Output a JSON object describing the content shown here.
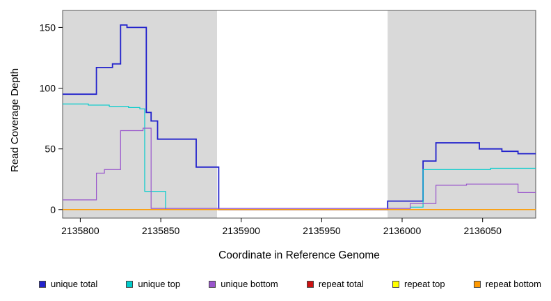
{
  "chart_data": {
    "type": "line",
    "subtype": "step-coverage",
    "title": "",
    "xlabel": "Coordinate in Reference Genome",
    "ylabel": "Read Coverage Depth",
    "x_range": [
      2135789,
      2136083
    ],
    "y_range": [
      -7,
      164
    ],
    "x_ticks": [
      2135800,
      2135850,
      2135900,
      2135950,
      2136000,
      2136050
    ],
    "y_ticks": [
      0,
      50,
      100,
      150
    ],
    "grid": false,
    "legend_position": "bottom",
    "plot_background": "#ffffff",
    "shaded_regions": [
      {
        "x0": 2135789,
        "x1": 2135885,
        "color": "#d9d9d9"
      },
      {
        "x0": 2135991,
        "x1": 2136083,
        "color": "#d9d9d9"
      }
    ],
    "series": [
      {
        "name": "unique total",
        "color": "#2222cc",
        "width": 1.8,
        "points": [
          [
            2135789,
            95
          ],
          [
            2135810,
            117
          ],
          [
            2135820,
            120
          ],
          [
            2135825,
            152
          ],
          [
            2135829,
            150
          ],
          [
            2135841,
            80
          ],
          [
            2135844,
            73
          ],
          [
            2135848,
            58
          ],
          [
            2135872,
            35
          ],
          [
            2135886,
            0
          ],
          [
            2135991,
            7
          ],
          [
            2136013,
            40
          ],
          [
            2136021,
            55
          ],
          [
            2136048,
            50
          ],
          [
            2136062,
            48
          ],
          [
            2136072,
            46
          ]
        ]
      },
      {
        "name": "unique top",
        "color": "#00cccc",
        "width": 1.2,
        "points": [
          [
            2135789,
            87
          ],
          [
            2135805,
            86
          ],
          [
            2135818,
            85
          ],
          [
            2135830,
            84
          ],
          [
            2135837,
            83
          ],
          [
            2135840,
            15
          ],
          [
            2135853,
            0
          ],
          [
            2136005,
            2
          ],
          [
            2136013,
            33
          ],
          [
            2136055,
            34
          ]
        ]
      },
      {
        "name": "unique bottom",
        "color": "#9955cc",
        "width": 1.2,
        "points": [
          [
            2135789,
            8
          ],
          [
            2135810,
            30
          ],
          [
            2135815,
            33
          ],
          [
            2135825,
            65
          ],
          [
            2135839,
            67
          ],
          [
            2135844,
            1
          ],
          [
            2136005,
            5
          ],
          [
            2136021,
            20
          ],
          [
            2136040,
            21
          ],
          [
            2136072,
            14
          ]
        ]
      },
      {
        "name": "repeat total",
        "color": "#cc1111",
        "width": 1.2,
        "points": [
          [
            2135789,
            0
          ]
        ]
      },
      {
        "name": "repeat top",
        "color": "#ffff00",
        "width": 1.2,
        "points": [
          [
            2135789,
            0
          ]
        ]
      },
      {
        "name": "repeat bottom",
        "color": "#ff9900",
        "width": 1.4,
        "points": [
          [
            2135789,
            0
          ]
        ]
      }
    ]
  }
}
